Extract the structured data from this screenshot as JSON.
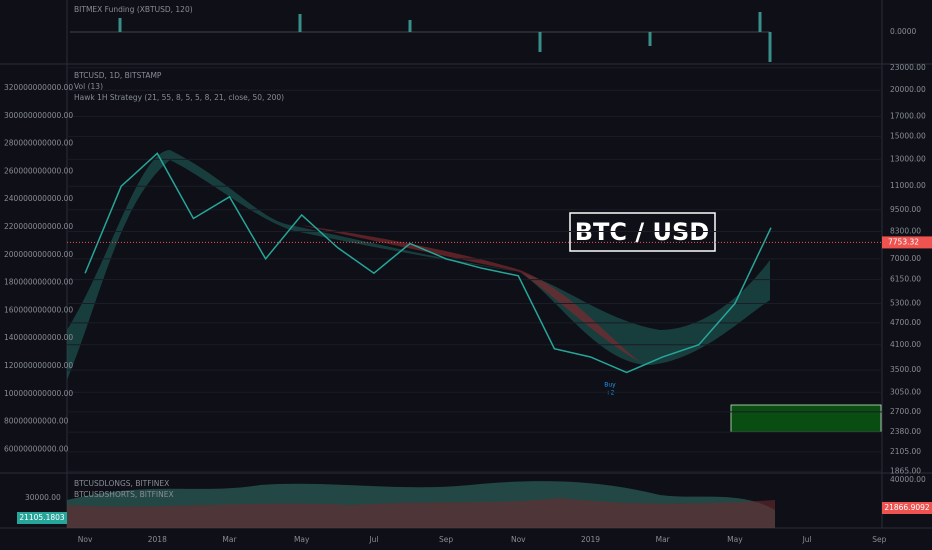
{
  "chart_data": {
    "type": "line",
    "title": "BTCUSD, 1D, BITSTAMP",
    "subtitle": "Vol (13)",
    "strategy_label": "Hawk 1H Strategy (21, 55, 8, 5, 5, 8, 21, close, 50, 200)",
    "annotation": "BTC / USD",
    "buy_label": "Buy",
    "buy_count": "+2",
    "categories": [
      null,
      "Nov",
      null,
      "2018",
      null,
      "Mar",
      null,
      "May",
      null,
      "Jul",
      null,
      "Sep",
      null,
      "Nov",
      null,
      "2019",
      null,
      "Mar",
      null,
      "May",
      null,
      "Jul",
      null,
      "Sep"
    ],
    "series": [
      {
        "name": "BTCUSD",
        "color": "#26a69a",
        "values": [
          null,
          6400,
          11000,
          13500,
          9000,
          10300,
          7000,
          9200,
          7500,
          6400,
          7700,
          7000,
          6600,
          6300,
          4000,
          3800,
          3450,
          3800,
          4100,
          5300,
          8500,
          null,
          null,
          null
        ]
      }
    ],
    "log_scale": true,
    "ylim": [
      1880,
      23400
    ],
    "yticks": [
      {
        "value": 1865,
        "label": "1865.00"
      },
      {
        "value": 2105,
        "label": "2105.00"
      },
      {
        "value": 2380,
        "label": "2380.00"
      },
      {
        "value": 2700,
        "label": "2700.00"
      },
      {
        "value": 3050,
        "label": "3050.00"
      },
      {
        "value": 3500,
        "label": "3500.00"
      },
      {
        "value": 4100,
        "label": "4100.00"
      },
      {
        "value": 4700,
        "label": "4700.00"
      },
      {
        "value": 5300,
        "label": "5300.00"
      },
      {
        "value": 6150,
        "label": "6150.00"
      },
      {
        "value": 7000,
        "label": "7000.00"
      },
      {
        "value": 8300,
        "label": "8300.00"
      },
      {
        "value": 9500,
        "label": "9500.00"
      },
      {
        "value": 11000,
        "label": "11000.00"
      },
      {
        "value": 13000,
        "label": "13000.00"
      },
      {
        "value": 15000,
        "label": "15000.00"
      },
      {
        "value": 17000,
        "label": "17000.00"
      },
      {
        "value": 20000,
        "label": "20000.00"
      },
      {
        "value": 23000,
        "label": "23000.00"
      }
    ],
    "last_price": 7753.32,
    "last_price_color": "#ef5350",
    "grid": true
  },
  "volume_axis_labels": [
    "320000000000.00",
    "300000000000.00",
    "280000000000.00",
    "260000000000.00",
    "240000000000.00",
    "220000000000.00",
    "200000000000.00",
    "180000000000.00",
    "160000000000.00",
    "140000000000.00",
    "120000000000.00",
    "100000000000.00",
    "80000000000.00",
    "60000000000.00"
  ],
  "funding_pane": {
    "title": "BITMEX Funding (XBTUSD, 120)",
    "tick": "0.0000"
  },
  "positions_pane": {
    "longs": "BTCUSDLONGS, BITFINEX",
    "shorts": "BTCUSDSHORTS, BITFINEX",
    "left_value": "21105.1803",
    "right_value": "21866.9092",
    "ticks": [
      "40000.00",
      "30000.00"
    ]
  }
}
